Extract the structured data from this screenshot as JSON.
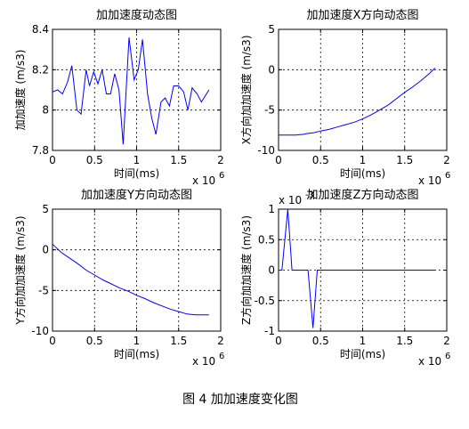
{
  "caption": "图 4  加加速度变化图",
  "chart_data": [
    {
      "type": "line",
      "title": "加加速度动态图",
      "xlabel": "时间(ms)",
      "ylabel": "加加速度 (m/s3)",
      "x_multiplier": "x 10",
      "x_exponent": "6",
      "y_multiplier": "",
      "y_exponent": "",
      "xlim": [
        0,
        2000000
      ],
      "ylim": [
        7.8,
        8.4
      ],
      "xticks": [
        0,
        500000,
        1000000,
        1500000,
        2000000
      ],
      "xtick_labels": [
        "0",
        "0.5",
        "1",
        "1.5",
        "2"
      ],
      "yticks": [
        7.8,
        8,
        8.2,
        8.4
      ],
      "ytick_labels": [
        "7.8",
        "8",
        "8.2",
        "8.4"
      ],
      "grid": true,
      "series": [
        {
          "color": "#0000ff",
          "x": [
            0,
            60000,
            120000,
            180000,
            230000,
            290000,
            340000,
            400000,
            440000,
            490000,
            540000,
            590000,
            640000,
            690000,
            740000,
            790000,
            840000,
            910000,
            970000,
            1020000,
            1070000,
            1130000,
            1180000,
            1230000,
            1290000,
            1340000,
            1390000,
            1440000,
            1500000,
            1560000,
            1610000,
            1660000,
            1720000,
            1770000,
            1860000
          ],
          "y": [
            8.09,
            8.1,
            8.08,
            8.14,
            8.22,
            8.0,
            7.98,
            8.2,
            8.12,
            8.19,
            8.13,
            8.2,
            8.08,
            8.08,
            8.18,
            8.1,
            7.83,
            8.36,
            8.15,
            8.2,
            8.35,
            8.08,
            7.96,
            7.88,
            8.04,
            8.06,
            8.02,
            8.12,
            8.12,
            8.09,
            8.0,
            8.11,
            8.08,
            8.04,
            8.1
          ]
        }
      ]
    },
    {
      "type": "line",
      "title": "加加速度X方向动态图",
      "xlabel": "时间(ms)",
      "ylabel": "X方向加加速度 (m/s3)",
      "x_multiplier": "x 10",
      "x_exponent": "6",
      "y_multiplier": "",
      "y_exponent": "",
      "xlim": [
        0,
        2000000
      ],
      "ylim": [
        -10,
        5
      ],
      "xticks": [
        0,
        500000,
        1000000,
        1500000,
        2000000
      ],
      "xtick_labels": [
        "0",
        "0.5",
        "1",
        "1.5",
        "2"
      ],
      "yticks": [
        -10,
        -5,
        0,
        5
      ],
      "ytick_labels": [
        "-10",
        "-5",
        "0",
        "5"
      ],
      "grid": true,
      "series": [
        {
          "color": "#0000ff",
          "x": [
            0,
            100000,
            200000,
            300000,
            340000,
            420000,
            500000,
            600000,
            700000,
            800000,
            900000,
            1000000,
            1100000,
            1200000,
            1300000,
            1400000,
            1500000,
            1600000,
            1700000,
            1800000,
            1860000
          ],
          "y": [
            -8.1,
            -8.1,
            -8.1,
            -8.0,
            -7.9,
            -7.8,
            -7.6,
            -7.4,
            -7.1,
            -6.8,
            -6.5,
            -6.1,
            -5.6,
            -5.0,
            -4.4,
            -3.6,
            -2.8,
            -2.1,
            -1.3,
            -0.4,
            0.2
          ]
        }
      ]
    },
    {
      "type": "line",
      "title": "加加速度Y方向动态图",
      "xlabel": "时间(ms)",
      "ylabel": "Y方向加加速度 (m/s3)",
      "x_multiplier": "x 10",
      "x_exponent": "6",
      "y_multiplier": "",
      "y_exponent": "",
      "xlim": [
        0,
        2000000
      ],
      "ylim": [
        -10,
        5
      ],
      "xticks": [
        0,
        500000,
        1000000,
        1500000,
        2000000
      ],
      "xtick_labels": [
        "0",
        "0.5",
        "1",
        "1.5",
        "2"
      ],
      "yticks": [
        -10,
        -5,
        0,
        5
      ],
      "ytick_labels": [
        "-10",
        "-5",
        "0",
        "5"
      ],
      "grid": true,
      "series": [
        {
          "color": "#0000ff",
          "x": [
            0,
            100000,
            200000,
            300000,
            400000,
            500000,
            600000,
            700000,
            800000,
            900000,
            1000000,
            1100000,
            1200000,
            1300000,
            1400000,
            1500000,
            1600000,
            1700000,
            1860000
          ],
          "y": [
            0.7,
            -0.3,
            -1.0,
            -1.7,
            -2.5,
            -3.1,
            -3.7,
            -4.2,
            -4.7,
            -5.1,
            -5.6,
            -6.0,
            -6.5,
            -6.9,
            -7.3,
            -7.6,
            -7.9,
            -8.0,
            -8.0
          ]
        }
      ]
    },
    {
      "type": "line",
      "title": "加加速度Z方向动态图",
      "xlabel": "时间(ms)",
      "ylabel": "Z方向加加速度 (m/s3)",
      "x_multiplier": "x 10",
      "x_exponent": "6",
      "y_multiplier": "x 10",
      "y_exponent": "-3",
      "xlim": [
        0,
        2000000
      ],
      "ylim": [
        -1,
        1
      ],
      "xticks": [
        0,
        500000,
        1000000,
        1500000,
        2000000
      ],
      "xtick_labels": [
        "0",
        "0.5",
        "1",
        "1.5",
        "2"
      ],
      "yticks": [
        -1,
        -0.5,
        0,
        0.5,
        1
      ],
      "ytick_labels": [
        "-1",
        "-0.5",
        "0",
        "0.5",
        "1"
      ],
      "grid": true,
      "series": [
        {
          "color": "#0000ff",
          "x": [
            0,
            40000,
            110000,
            160000,
            200000,
            350000,
            410000,
            460000,
            500000,
            1860000
          ],
          "y": [
            0,
            0,
            1.0,
            0,
            0,
            0,
            -0.95,
            0,
            0,
            0
          ]
        }
      ]
    }
  ]
}
